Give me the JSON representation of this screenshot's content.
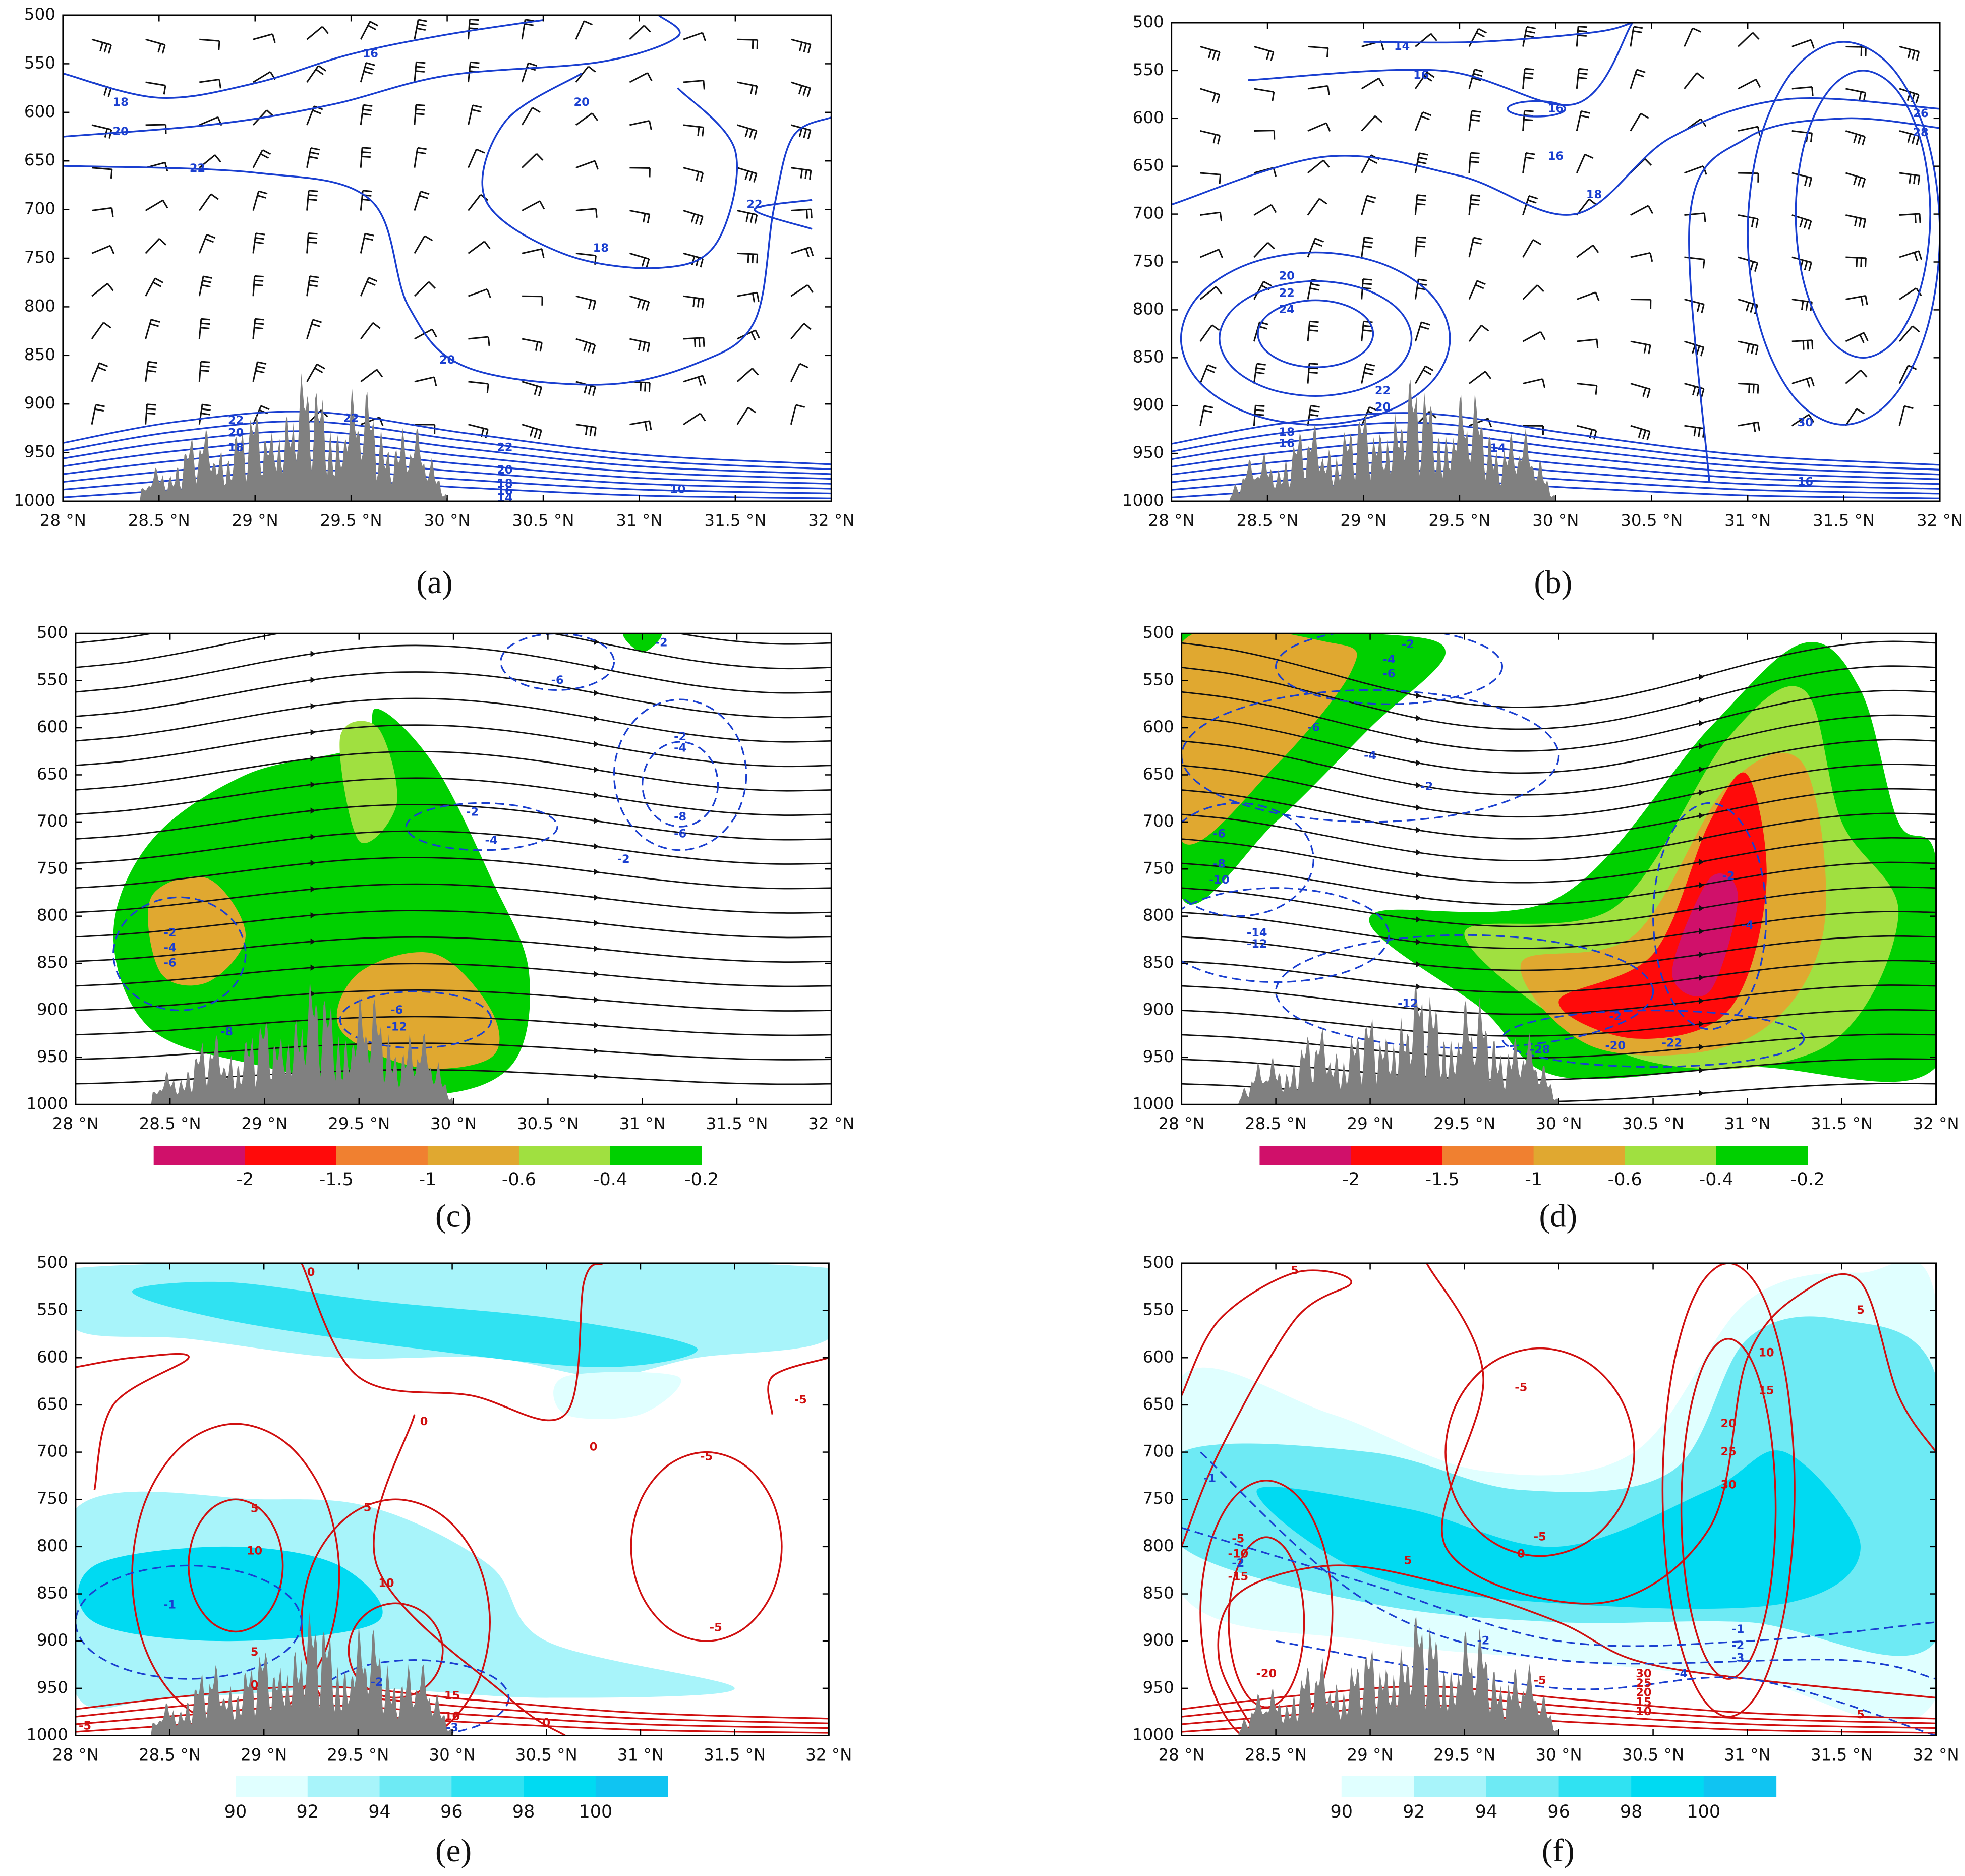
{
  "x_axis": {
    "lim": [
      28,
      32
    ],
    "ticks": [
      {
        "value": 28,
        "label": "28 °N"
      },
      {
        "value": 28.5,
        "label": "28.5 °N"
      },
      {
        "value": 29,
        "label": "29 °N"
      },
      {
        "value": 29.5,
        "label": "29.5 °N"
      },
      {
        "value": 30,
        "label": "30 °N"
      },
      {
        "value": 30.5,
        "label": "30.5 °N"
      },
      {
        "value": 31,
        "label": "31 °N"
      },
      {
        "value": 31.5,
        "label": "31.5 °N"
      },
      {
        "value": 32,
        "label": "32 °N"
      }
    ]
  },
  "y_axis": {
    "lim": [
      500,
      1000
    ],
    "ticks": [
      500,
      550,
      600,
      650,
      700,
      750,
      800,
      850,
      900,
      950,
      1000
    ]
  },
  "panels": [
    {
      "label": "(a)",
      "contour_labels": [
        {
          "text": "16",
          "color": "#1a3fd0"
        },
        {
          "text": "18",
          "color": "#1a3fd0"
        },
        {
          "text": "20",
          "color": "#1a3fd0"
        },
        {
          "text": "22",
          "color": "#1a3fd0"
        },
        {
          "text": "20",
          "color": "#1a3fd0"
        },
        {
          "text": "18",
          "color": "#1a3fd0"
        },
        {
          "text": "22",
          "color": "#1a3fd0"
        },
        {
          "text": "20",
          "color": "#1a3fd0"
        },
        {
          "text": "22",
          "color": "#1a3fd0"
        },
        {
          "text": "22",
          "color": "#1a3fd0"
        },
        {
          "text": "20",
          "color": "#1a3fd0"
        },
        {
          "text": "18",
          "color": "#1a3fd0"
        },
        {
          "text": "22",
          "color": "#1a3fd0"
        },
        {
          "text": "20",
          "color": "#1a3fd0"
        },
        {
          "text": "18",
          "color": "#1a3fd0"
        },
        {
          "text": "16",
          "color": "#1a3fd0"
        },
        {
          "text": "14",
          "color": "#1a3fd0"
        },
        {
          "text": "10",
          "color": "#1a3fd0"
        }
      ]
    },
    {
      "label": "(b)",
      "contour_labels": [
        {
          "text": "14",
          "color": "#1a3fd0"
        },
        {
          "text": "16",
          "color": "#1a3fd0"
        },
        {
          "text": "16",
          "color": "#1a3fd0"
        },
        {
          "text": "16",
          "color": "#1a3fd0"
        },
        {
          "text": "18",
          "color": "#1a3fd0"
        },
        {
          "text": "26",
          "color": "#1a3fd0"
        },
        {
          "text": "28",
          "color": "#1a3fd0"
        },
        {
          "text": "20",
          "color": "#1a3fd0"
        },
        {
          "text": "22",
          "color": "#1a3fd0"
        },
        {
          "text": "24",
          "color": "#1a3fd0"
        },
        {
          "text": "22",
          "color": "#1a3fd0"
        },
        {
          "text": "20",
          "color": "#1a3fd0"
        },
        {
          "text": "18",
          "color": "#1a3fd0"
        },
        {
          "text": "16",
          "color": "#1a3fd0"
        },
        {
          "text": "14",
          "color": "#1a3fd0"
        },
        {
          "text": "30",
          "color": "#1a3fd0"
        },
        {
          "text": "16",
          "color": "#1a3fd0"
        }
      ]
    },
    {
      "label": "(c)",
      "contour_labels": [
        {
          "text": "-2",
          "color": "#1a3fd0"
        },
        {
          "text": "-6",
          "color": "#1a3fd0"
        },
        {
          "text": "-2",
          "color": "#1a3fd0"
        },
        {
          "text": "-4",
          "color": "#1a3fd0"
        },
        {
          "text": "-2",
          "color": "#1a3fd0"
        },
        {
          "text": "-4",
          "color": "#1a3fd0"
        },
        {
          "text": "-8",
          "color": "#1a3fd0"
        },
        {
          "text": "-6",
          "color": "#1a3fd0"
        },
        {
          "text": "-2",
          "color": "#1a3fd0"
        },
        {
          "text": "-2",
          "color": "#1a3fd0"
        },
        {
          "text": "-4",
          "color": "#1a3fd0"
        },
        {
          "text": "-6",
          "color": "#1a3fd0"
        },
        {
          "text": "-8",
          "color": "#1a3fd0"
        },
        {
          "text": "-6",
          "color": "#1a3fd0"
        },
        {
          "text": "-12",
          "color": "#1a3fd0"
        }
      ],
      "colorbar": {
        "colors": [
          "#d0106a",
          "#ff0a0a",
          "#f08030",
          "#e0a830",
          "#a0e040",
          "#00d000"
        ],
        "ticks": [
          -2,
          -1.5,
          -1,
          -0.6,
          -0.4,
          -0.2
        ]
      }
    },
    {
      "label": "(d)",
      "contour_labels": [
        {
          "text": "-2",
          "color": "#1a3fd0"
        },
        {
          "text": "-4",
          "color": "#1a3fd0"
        },
        {
          "text": "-6",
          "color": "#1a3fd0"
        },
        {
          "text": "-6",
          "color": "#1a3fd0"
        },
        {
          "text": "-4",
          "color": "#1a3fd0"
        },
        {
          "text": "-2",
          "color": "#1a3fd0"
        },
        {
          "text": "-6",
          "color": "#1a3fd0"
        },
        {
          "text": "-8",
          "color": "#1a3fd0"
        },
        {
          "text": "-10",
          "color": "#1a3fd0"
        },
        {
          "text": "-14",
          "color": "#1a3fd0"
        },
        {
          "text": "-12",
          "color": "#1a3fd0"
        },
        {
          "text": "-12",
          "color": "#1a3fd0"
        },
        {
          "text": "-2",
          "color": "#1a3fd0"
        },
        {
          "text": "-4",
          "color": "#1a3fd0"
        },
        {
          "text": "-2",
          "color": "#1a3fd0"
        },
        {
          "text": "-20",
          "color": "#1a3fd0"
        },
        {
          "text": "-22",
          "color": "#1a3fd0"
        },
        {
          "text": "-28",
          "color": "#1a3fd0"
        }
      ],
      "colorbar": {
        "colors": [
          "#d0106a",
          "#ff0a0a",
          "#f08030",
          "#e0a830",
          "#a0e040",
          "#00d000"
        ],
        "ticks": [
          -2,
          -1.5,
          -1,
          -0.6,
          -0.4,
          -0.2
        ]
      }
    },
    {
      "label": "(e)",
      "contour_labels": [
        {
          "text": "0",
          "color": "#d01010"
        },
        {
          "text": "0",
          "color": "#d01010"
        },
        {
          "text": "-5",
          "color": "#d01010"
        },
        {
          "text": "-5",
          "color": "#d01010"
        },
        {
          "text": "-5",
          "color": "#d01010"
        },
        {
          "text": "0",
          "color": "#d01010"
        },
        {
          "text": "5",
          "color": "#d01010"
        },
        {
          "text": "10",
          "color": "#d01010"
        },
        {
          "text": "5",
          "color": "#d01010"
        },
        {
          "text": "10",
          "color": "#d01010"
        },
        {
          "text": "5",
          "color": "#d01010"
        },
        {
          "text": "0",
          "color": "#d01010"
        },
        {
          "text": "-5",
          "color": "#d01010"
        },
        {
          "text": "15",
          "color": "#d01010"
        },
        {
          "text": "10",
          "color": "#d01010"
        },
        {
          "text": "0",
          "color": "#d01010"
        },
        {
          "text": "-1",
          "color": "#1a3fd0"
        },
        {
          "text": "-2",
          "color": "#1a3fd0"
        },
        {
          "text": "-3",
          "color": "#1a3fd0"
        }
      ],
      "colorbar": {
        "colors": [
          "#e0ffff",
          "#a8f4fa",
          "#6eeaf4",
          "#30e2f2",
          "#00daf2",
          "#10c4f2"
        ],
        "ticks": [
          90,
          92,
          94,
          96,
          98,
          100
        ]
      }
    },
    {
      "label": "(f)",
      "contour_labels": [
        {
          "text": "5",
          "color": "#d01010"
        },
        {
          "text": "5",
          "color": "#d01010"
        },
        {
          "text": "10",
          "color": "#d01010"
        },
        {
          "text": "15",
          "color": "#d01010"
        },
        {
          "text": "20",
          "color": "#d01010"
        },
        {
          "text": "25",
          "color": "#d01010"
        },
        {
          "text": "30",
          "color": "#d01010"
        },
        {
          "text": "-5",
          "color": "#d01010"
        },
        {
          "text": "-5",
          "color": "#d01010"
        },
        {
          "text": "0",
          "color": "#d01010"
        },
        {
          "text": "5",
          "color": "#d01010"
        },
        {
          "text": "-5",
          "color": "#d01010"
        },
        {
          "text": "-10",
          "color": "#d01010"
        },
        {
          "text": "-15",
          "color": "#d01010"
        },
        {
          "text": "-20",
          "color": "#d01010"
        },
        {
          "text": "-5",
          "color": "#d01010"
        },
        {
          "text": "30",
          "color": "#d01010"
        },
        {
          "text": "25",
          "color": "#d01010"
        },
        {
          "text": "20",
          "color": "#d01010"
        },
        {
          "text": "15",
          "color": "#d01010"
        },
        {
          "text": "10",
          "color": "#d01010"
        },
        {
          "text": "5",
          "color": "#d01010"
        },
        {
          "text": "-1",
          "color": "#1a3fd0"
        },
        {
          "text": "-2",
          "color": "#1a3fd0"
        },
        {
          "text": "-2",
          "color": "#1a3fd0"
        },
        {
          "text": "-1",
          "color": "#1a3fd0"
        },
        {
          "text": "-2",
          "color": "#1a3fd0"
        },
        {
          "text": "-3",
          "color": "#1a3fd0"
        },
        {
          "text": "-4",
          "color": "#1a3fd0"
        }
      ],
      "colorbar": {
        "colors": [
          "#e0ffff",
          "#a8f4fa",
          "#6eeaf4",
          "#30e2f2",
          "#00daf2",
          "#10c4f2"
        ],
        "ticks": [
          90,
          92,
          94,
          96,
          98,
          100
        ]
      }
    }
  ]
}
